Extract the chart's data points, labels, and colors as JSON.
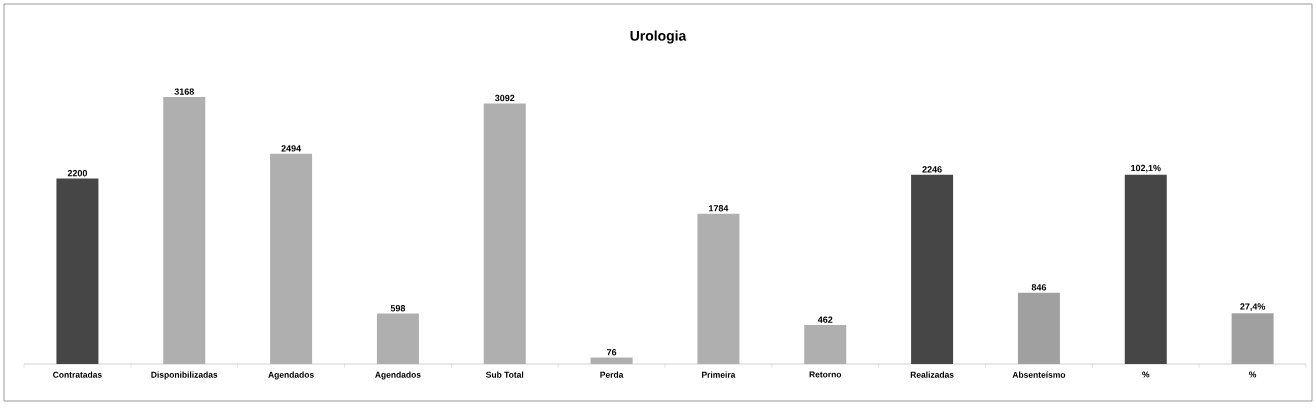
{
  "chart_data": {
    "type": "bar",
    "title": "Urologia",
    "categories": [
      "Contratadas",
      "Disponibilizadas",
      "Agendados",
      "Agendados",
      "Sub Total",
      "Perda",
      "Primeira",
      "Retorno",
      "Realizadas",
      "Absenteísmo",
      "%",
      "%"
    ],
    "series": [
      {
        "values": [
          2200,
          3168,
          2494,
          598,
          3092,
          76,
          1784,
          462,
          2246,
          846,
          null,
          null
        ],
        "value_labels": [
          "2200",
          "3168",
          "2494",
          "598",
          "3092",
          "76",
          "1784",
          "462",
          "2246",
          "846",
          null,
          null
        ],
        "colors": [
          "#464646",
          "#afafaf",
          "#afafaf",
          "#afafaf",
          "#afafaf",
          "#afafaf",
          "#afafaf",
          "#afafaf",
          "#464646",
          "#a0a0a0",
          null,
          null
        ]
      },
      {
        "axis": "y2",
        "values": [
          null,
          null,
          null,
          null,
          null,
          null,
          null,
          null,
          null,
          null,
          102.1,
          27.4
        ],
        "value_labels": [
          null,
          null,
          null,
          null,
          null,
          null,
          null,
          null,
          null,
          null,
          "102,1%",
          "27,4%"
        ],
        "colors": [
          null,
          null,
          null,
          null,
          null,
          null,
          null,
          null,
          null,
          null,
          "#464646",
          "#a0a0a0"
        ]
      }
    ],
    "y2lim": [
      0,
      144
    ]
  }
}
